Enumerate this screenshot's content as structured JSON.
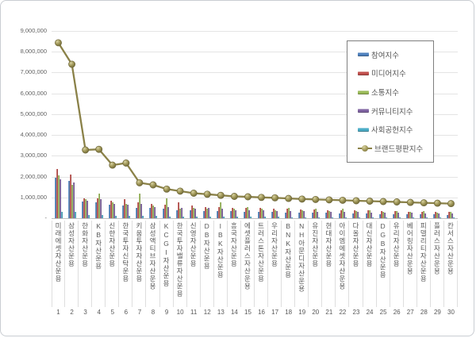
{
  "chart_data": {
    "type": "bar",
    "title": "",
    "grid": true,
    "legend_position": "inside-right",
    "categories": [
      "미래에셋자산운용",
      "삼성자산운용",
      "한화자산운용",
      "KB자산운용",
      "신한자산운용",
      "한국투자신탁운용",
      "키움투자자산운용",
      "삼성액티브자산운용",
      "KCGI자산운용",
      "한국투자밸류자산운용",
      "신영자산운용",
      "DB자산운용",
      "IBK자산운용",
      "흥국자산운용",
      "에셋플러스자산운용",
      "트러스톤자산운용",
      "우리자산운용",
      "BNK자산운용",
      "NH아문디자산운용",
      "유진자산운용",
      "현대자산운용",
      "아이엠에셋자산운용",
      "다올자산운용",
      "대신자산운용",
      "DGB자산운용",
      "유리자산운용",
      "베어링자산운용",
      "피델리티자산운용",
      "플러스자산운용",
      "칸서스자산운용"
    ],
    "ranks": [
      "1",
      "2",
      "3",
      "4",
      "5",
      "6",
      "7",
      "8",
      "9",
      "10",
      "11",
      "12",
      "13",
      "14",
      "15",
      "16",
      "17",
      "18",
      "19",
      "20",
      "21",
      "22",
      "23",
      "24",
      "25",
      "26",
      "27",
      "28",
      "29",
      "30"
    ],
    "y_axis": {
      "min": 0,
      "max": 9000000,
      "step": 1000000,
      "tick_labels": [
        "9,000,000",
        "8,000,000",
        "7,000,000",
        "6,000,000",
        "5,000,000",
        "4,000,000",
        "3,000,000",
        "2,000,000",
        "1,000,000"
      ],
      "zero_label": "-"
    },
    "series": [
      {
        "name": "참여지수",
        "type": "bar",
        "color": "#4F81BD",
        "values": [
          1950000,
          1800000,
          800000,
          750000,
          650000,
          600000,
          500000,
          480000,
          450000,
          400000,
          400000,
          350000,
          350000,
          330000,
          300000,
          300000,
          290000,
          280000,
          270000,
          250000,
          250000,
          240000,
          220000,
          220000,
          200000,
          200000,
          190000,
          180000,
          180000,
          170000
        ]
      },
      {
        "name": "미디어지수",
        "type": "bar",
        "color": "#C0504D",
        "values": [
          2350000,
          2100000,
          950000,
          950000,
          850000,
          900000,
          750000,
          700000,
          650000,
          750000,
          600000,
          550000,
          550000,
          500000,
          500000,
          480000,
          450000,
          440000,
          420000,
          410000,
          400000,
          390000,
          380000,
          370000,
          350000,
          340000,
          320000,
          310000,
          300000,
          290000
        ]
      },
      {
        "name": "소통지수",
        "type": "bar",
        "color": "#9BBB59",
        "values": [
          2050000,
          1600000,
          900000,
          1200000,
          750000,
          700000,
          1200000,
          600000,
          950000,
          450000,
          500000,
          450000,
          750000,
          450000,
          550000,
          450000,
          400000,
          500000,
          400000,
          450000,
          350000,
          450000,
          350000,
          400000,
          300000,
          350000,
          300000,
          350000,
          280000,
          320000
        ]
      },
      {
        "name": "커뮤니티지수",
        "type": "bar",
        "color": "#8064A2",
        "values": [
          1850000,
          1700000,
          850000,
          900000,
          700000,
          650000,
          700000,
          550000,
          550000,
          500000,
          450000,
          500000,
          450000,
          400000,
          400000,
          390000,
          360000,
          350000,
          340000,
          320000,
          310000,
          300000,
          290000,
          280000,
          270000,
          260000,
          250000,
          240000,
          230000,
          220000
        ]
      },
      {
        "name": "사회공헌지수",
        "type": "bar",
        "color": "#4BACC6",
        "values": [
          320000,
          300000,
          150000,
          150000,
          120000,
          110000,
          100000,
          100000,
          90000,
          80000,
          80000,
          75000,
          70000,
          70000,
          65000,
          60000,
          60000,
          55000,
          55000,
          50000,
          50000,
          50000,
          45000,
          45000,
          40000,
          40000,
          40000,
          35000,
          35000,
          30000
        ]
      },
      {
        "name": "브랜드평판지수",
        "type": "line",
        "color": "#948A54",
        "values": [
          8430000,
          7400000,
          3280000,
          3310000,
          2550000,
          2650000,
          1700000,
          1600000,
          1400000,
          1300000,
          1200000,
          1150000,
          1100000,
          1050000,
          1030000,
          1000000,
          980000,
          950000,
          920000,
          900000,
          880000,
          860000,
          840000,
          820000,
          800000,
          780000,
          760000,
          740000,
          720000,
          700000
        ]
      }
    ]
  }
}
